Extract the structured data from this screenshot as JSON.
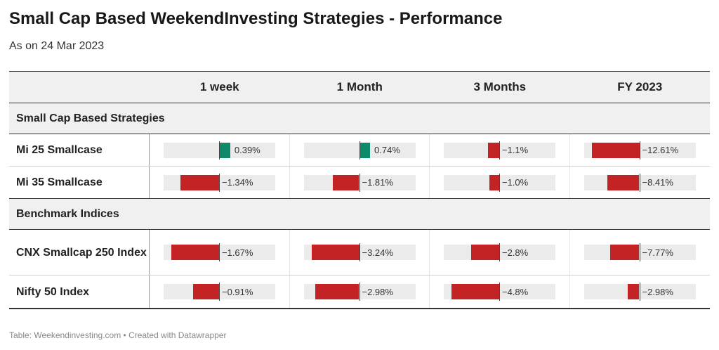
{
  "title": "Small Cap Based WeekendInvesting Strategies - Performance",
  "subtitle": "As on 24 Mar 2023",
  "footer": "Table: Weekendinvesting.com • Created with Datawrapper",
  "colors": {
    "positive": "#0e8a6a",
    "negative": "#c42325",
    "track": "#ebebeb"
  },
  "chart_data": {
    "type": "table",
    "columns": [
      "1 week",
      "1 Month",
      "3 Months",
      "FY 2023"
    ],
    "groups": [
      {
        "name": "Small Cap Based Strategies",
        "rows": [
          {
            "name": "Mi 25 Smallcase",
            "values": [
              0.39,
              0.74,
              -1.1,
              -12.61
            ],
            "labels": [
              "0.39%",
              "0.74%",
              "−1.1%",
              "−12.61%"
            ]
          },
          {
            "name": "Mi 35 Smallcase",
            "values": [
              -1.34,
              -1.81,
              -1.0,
              -8.41
            ],
            "labels": [
              "−1.34%",
              "−1.81%",
              "−1.0%",
              "−8.41%"
            ]
          }
        ]
      },
      {
        "name": "Benchmark Indices",
        "rows": [
          {
            "name": "CNX Smallcap 250 Index",
            "values": [
              -1.67,
              -3.24,
              -2.8,
              -7.77
            ],
            "labels": [
              "−1.67%",
              "−3.24%",
              "−2.8%",
              "−7.77%"
            ]
          },
          {
            "name": "Nifty 50 Index",
            "values": [
              -0.91,
              -2.98,
              -4.8,
              -2.98
            ],
            "labels": [
              "−0.91%",
              "−2.98%",
              "−4.8%",
              "−2.98%"
            ]
          }
        ]
      }
    ]
  }
}
